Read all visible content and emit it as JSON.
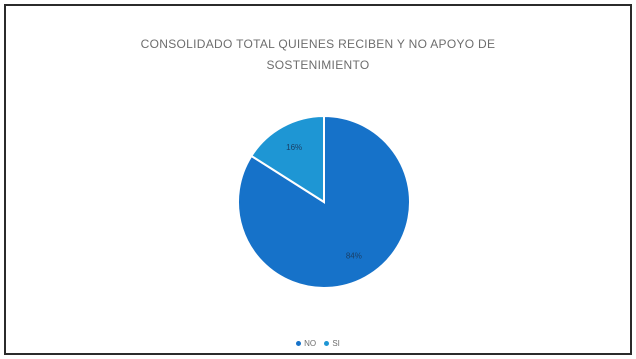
{
  "chart_data": {
    "type": "pie",
    "title_line1": "CONSOLIDADO TOTAL QUIENES RECIBEN Y NO APOYO DE",
    "title_line2": "SOSTENIMIENTO",
    "slices": [
      {
        "label": "NO",
        "value": 84,
        "data_label": "84%",
        "color": "#1672c9"
      },
      {
        "label": "SI",
        "value": 16,
        "data_label": "16%",
        "color": "#1e96d4"
      }
    ],
    "legend_position": "bottom"
  }
}
